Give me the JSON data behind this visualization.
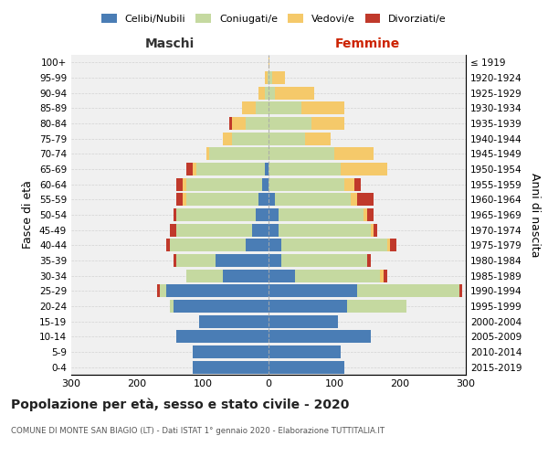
{
  "age_groups": [
    "0-4",
    "5-9",
    "10-14",
    "15-19",
    "20-24",
    "25-29",
    "30-34",
    "35-39",
    "40-44",
    "45-49",
    "50-54",
    "55-59",
    "60-64",
    "65-69",
    "70-74",
    "75-79",
    "80-84",
    "85-89",
    "90-94",
    "95-99",
    "100+"
  ],
  "birth_years": [
    "2015-2019",
    "2010-2014",
    "2005-2009",
    "2000-2004",
    "1995-1999",
    "1990-1994",
    "1985-1989",
    "1980-1984",
    "1975-1979",
    "1970-1974",
    "1965-1969",
    "1960-1964",
    "1955-1959",
    "1950-1954",
    "1945-1949",
    "1940-1944",
    "1935-1939",
    "1930-1934",
    "1925-1929",
    "1920-1924",
    "≤ 1919"
  ],
  "maschi": {
    "celibi": [
      115,
      115,
      140,
      105,
      145,
      155,
      70,
      80,
      35,
      25,
      20,
      15,
      10,
      5,
      0,
      0,
      0,
      0,
      0,
      0,
      0
    ],
    "coniugati": [
      0,
      0,
      0,
      0,
      5,
      10,
      55,
      60,
      115,
      115,
      120,
      110,
      115,
      105,
      90,
      55,
      35,
      20,
      5,
      2,
      0
    ],
    "vedovi": [
      0,
      0,
      0,
      0,
      0,
      0,
      0,
      0,
      0,
      0,
      0,
      5,
      5,
      5,
      5,
      15,
      20,
      20,
      10,
      3,
      0
    ],
    "divorziati": [
      0,
      0,
      0,
      0,
      0,
      5,
      0,
      5,
      5,
      10,
      5,
      10,
      10,
      10,
      0,
      0,
      5,
      0,
      0,
      0,
      0
    ]
  },
  "femmine": {
    "nubili": [
      115,
      110,
      155,
      105,
      120,
      135,
      40,
      20,
      20,
      15,
      15,
      10,
      0,
      0,
      0,
      0,
      0,
      0,
      0,
      0,
      0
    ],
    "coniugate": [
      0,
      0,
      0,
      0,
      90,
      155,
      130,
      130,
      160,
      140,
      130,
      115,
      115,
      110,
      100,
      55,
      65,
      50,
      10,
      5,
      0
    ],
    "vedove": [
      0,
      0,
      0,
      0,
      0,
      0,
      5,
      0,
      5,
      5,
      5,
      10,
      15,
      70,
      60,
      40,
      50,
      65,
      60,
      20,
      2
    ],
    "divorziate": [
      0,
      0,
      0,
      0,
      0,
      5,
      5,
      5,
      10,
      5,
      10,
      25,
      10,
      0,
      0,
      0,
      0,
      0,
      0,
      0,
      0
    ]
  },
  "color_celibi": "#4a7db5",
  "color_coniugati": "#c5d9a0",
  "color_vedovi": "#f5c96a",
  "color_divorziati": "#c0392b",
  "xlim": 300,
  "title": "Popolazione per età, sesso e stato civile - 2020",
  "subtitle": "COMUNE DI MONTE SAN BIAGIO (LT) - Dati ISTAT 1° gennaio 2020 - Elaborazione TUTTITALIA.IT",
  "ylabel_left": "Fasce di età",
  "ylabel_right": "Anni di nascita",
  "label_maschi": "Maschi",
  "label_femmine": "Femmine",
  "legend_celibi": "Celibi/Nubili",
  "legend_coniugati": "Coniugati/e",
  "legend_vedovi": "Vedovi/e",
  "legend_divorziati": "Divorziati/e"
}
